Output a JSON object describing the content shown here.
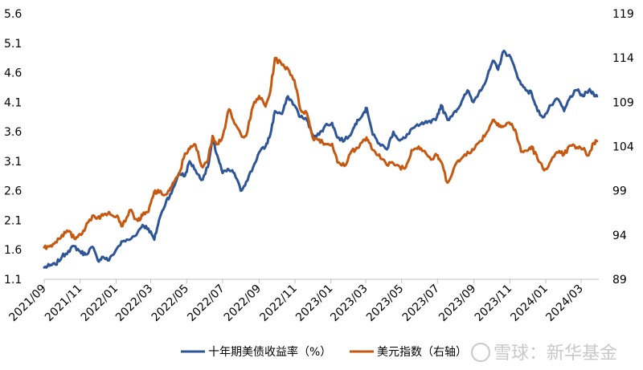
{
  "chart_data": {
    "type": "line",
    "title": "",
    "x_tick_labels": [
      "2021/09",
      "2021/11",
      "2022/01",
      "2022/03",
      "2022/05",
      "2022/07",
      "2022/09",
      "2022/11",
      "2023/01",
      "2023/03",
      "2023/05",
      "2023/07",
      "2023/09",
      "2023/11",
      "2024/01",
      "2024/03"
    ],
    "y_left": {
      "ticks": [
        "1.1",
        "1.6",
        "2.1",
        "2.6",
        "3.1",
        "3.6",
        "4.1",
        "4.6",
        "5.1",
        "5.6"
      ],
      "range": [
        1.1,
        5.6
      ]
    },
    "y_right": {
      "ticks": [
        "89",
        "94",
        "99",
        "104",
        "109",
        "114",
        "119"
      ],
      "range": [
        89,
        119
      ]
    },
    "series": [
      {
        "name": "十年期美债收益率（%）",
        "axis": "left",
        "color": "#2e5597",
        "points": [
          [
            "2021-09-01",
            1.3
          ],
          [
            "2021-09-10",
            1.33
          ],
          [
            "2021-09-20",
            1.35
          ],
          [
            "2021-10-01",
            1.48
          ],
          [
            "2021-10-12",
            1.58
          ],
          [
            "2021-10-22",
            1.66
          ],
          [
            "2021-11-01",
            1.57
          ],
          [
            "2021-11-10",
            1.52
          ],
          [
            "2021-11-22",
            1.65
          ],
          [
            "2021-12-01",
            1.42
          ],
          [
            "2021-12-10",
            1.48
          ],
          [
            "2021-12-20",
            1.42
          ],
          [
            "2022-01-03",
            1.63
          ],
          [
            "2022-01-12",
            1.74
          ],
          [
            "2022-01-24",
            1.77
          ],
          [
            "2022-02-07",
            1.9
          ],
          [
            "2022-02-15",
            2.02
          ],
          [
            "2022-02-25",
            1.96
          ],
          [
            "2022-03-07",
            1.77
          ],
          [
            "2022-03-15",
            2.1
          ],
          [
            "2022-03-28",
            2.45
          ],
          [
            "2022-04-05",
            2.55
          ],
          [
            "2022-04-18",
            2.9
          ],
          [
            "2022-04-28",
            2.85
          ],
          [
            "2022-05-06",
            3.1
          ],
          [
            "2022-05-16",
            2.95
          ],
          [
            "2022-05-26",
            2.78
          ],
          [
            "2022-06-06",
            3.0
          ],
          [
            "2022-06-14",
            3.45
          ],
          [
            "2022-06-22",
            3.2
          ],
          [
            "2022-07-01",
            2.9
          ],
          [
            "2022-07-12",
            2.95
          ],
          [
            "2022-07-21",
            2.9
          ],
          [
            "2022-08-01",
            2.6
          ],
          [
            "2022-08-10",
            2.75
          ],
          [
            "2022-08-22",
            3.0
          ],
          [
            "2022-09-01",
            3.25
          ],
          [
            "2022-09-12",
            3.35
          ],
          [
            "2022-09-20",
            3.55
          ],
          [
            "2022-09-28",
            3.95
          ],
          [
            "2022-10-10",
            3.9
          ],
          [
            "2022-10-20",
            4.2
          ],
          [
            "2022-10-31",
            4.05
          ],
          [
            "2022-11-10",
            3.85
          ],
          [
            "2022-11-21",
            3.8
          ],
          [
            "2022-12-01",
            3.55
          ],
          [
            "2022-12-12",
            3.55
          ],
          [
            "2022-12-22",
            3.7
          ],
          [
            "2023-01-03",
            3.75
          ],
          [
            "2023-01-12",
            3.5
          ],
          [
            "2023-01-24",
            3.45
          ],
          [
            "2023-02-06",
            3.6
          ],
          [
            "2023-02-15",
            3.8
          ],
          [
            "2023-02-28",
            3.95
          ],
          [
            "2023-03-03",
            4.0
          ],
          [
            "2023-03-13",
            3.55
          ],
          [
            "2023-03-24",
            3.4
          ],
          [
            "2023-04-06",
            3.3
          ],
          [
            "2023-04-17",
            3.6
          ],
          [
            "2023-04-28",
            3.45
          ],
          [
            "2023-05-08",
            3.5
          ],
          [
            "2023-05-18",
            3.65
          ],
          [
            "2023-05-30",
            3.7
          ],
          [
            "2023-06-09",
            3.75
          ],
          [
            "2023-06-20",
            3.75
          ],
          [
            "2023-06-30",
            3.85
          ],
          [
            "2023-07-07",
            4.05
          ],
          [
            "2023-07-18",
            3.8
          ],
          [
            "2023-07-31",
            3.95
          ],
          [
            "2023-08-09",
            4.05
          ],
          [
            "2023-08-21",
            4.3
          ],
          [
            "2023-08-31",
            4.1
          ],
          [
            "2023-09-11",
            4.3
          ],
          [
            "2023-09-21",
            4.45
          ],
          [
            "2023-10-03",
            4.8
          ],
          [
            "2023-10-12",
            4.65
          ],
          [
            "2023-10-20",
            4.95
          ],
          [
            "2023-10-31",
            4.9
          ],
          [
            "2023-11-10",
            4.65
          ],
          [
            "2023-11-20",
            4.4
          ],
          [
            "2023-11-30",
            4.3
          ],
          [
            "2023-12-08",
            4.25
          ],
          [
            "2023-12-18",
            3.95
          ],
          [
            "2023-12-29",
            3.85
          ],
          [
            "2024-01-10",
            4.05
          ],
          [
            "2024-01-22",
            4.15
          ],
          [
            "2024-02-01",
            3.95
          ],
          [
            "2024-02-12",
            4.2
          ],
          [
            "2024-02-23",
            4.3
          ],
          [
            "2024-03-04",
            4.2
          ],
          [
            "2024-03-14",
            4.3
          ],
          [
            "2024-03-22",
            4.25
          ],
          [
            "2024-03-28",
            4.2
          ]
        ]
      },
      {
        "name": "美元指数（右轴）",
        "axis": "right",
        "color": "#c65911",
        "points": [
          [
            "2021-09-01",
            92.6
          ],
          [
            "2021-09-10",
            92.7
          ],
          [
            "2021-09-20",
            93.2
          ],
          [
            "2021-10-01",
            94.0
          ],
          [
            "2021-10-12",
            94.4
          ],
          [
            "2021-10-22",
            93.6
          ],
          [
            "2021-11-01",
            94.1
          ],
          [
            "2021-11-10",
            94.8
          ],
          [
            "2021-11-22",
            96.2
          ],
          [
            "2021-12-01",
            96.0
          ],
          [
            "2021-12-10",
            96.2
          ],
          [
            "2021-12-20",
            96.6
          ],
          [
            "2022-01-03",
            96.2
          ],
          [
            "2022-01-12",
            95.0
          ],
          [
            "2022-01-24",
            96.8
          ],
          [
            "2022-02-07",
            95.6
          ],
          [
            "2022-02-15",
            96.2
          ],
          [
            "2022-02-25",
            96.6
          ],
          [
            "2022-03-07",
            98.9
          ],
          [
            "2022-03-15",
            98.8
          ],
          [
            "2022-03-28",
            98.6
          ],
          [
            "2022-04-05",
            99.4
          ],
          [
            "2022-04-18",
            100.8
          ],
          [
            "2022-04-28",
            103.2
          ],
          [
            "2022-05-06",
            103.7
          ],
          [
            "2022-05-16",
            104.2
          ],
          [
            "2022-05-26",
            101.8
          ],
          [
            "2022-06-06",
            102.4
          ],
          [
            "2022-06-14",
            105.2
          ],
          [
            "2022-06-22",
            104.3
          ],
          [
            "2022-07-01",
            105.1
          ],
          [
            "2022-07-12",
            108.2
          ],
          [
            "2022-07-21",
            106.6
          ],
          [
            "2022-08-01",
            105.4
          ],
          [
            "2022-08-10",
            105.2
          ],
          [
            "2022-08-22",
            108.6
          ],
          [
            "2022-09-01",
            109.7
          ],
          [
            "2022-09-12",
            108.5
          ],
          [
            "2022-09-20",
            110.2
          ],
          [
            "2022-09-28",
            114.0
          ],
          [
            "2022-10-10",
            113.2
          ],
          [
            "2022-10-20",
            112.8
          ],
          [
            "2022-10-31",
            111.5
          ],
          [
            "2022-11-10",
            108.2
          ],
          [
            "2022-11-21",
            107.8
          ],
          [
            "2022-12-01",
            105.0
          ],
          [
            "2022-12-12",
            104.8
          ],
          [
            "2022-12-22",
            104.3
          ],
          [
            "2023-01-03",
            104.3
          ],
          [
            "2023-01-12",
            102.2
          ],
          [
            "2023-01-24",
            101.8
          ],
          [
            "2023-02-06",
            103.6
          ],
          [
            "2023-02-15",
            103.8
          ],
          [
            "2023-02-28",
            104.8
          ],
          [
            "2023-03-03",
            104.8
          ],
          [
            "2023-03-13",
            103.6
          ],
          [
            "2023-03-24",
            103.1
          ],
          [
            "2023-04-06",
            101.9
          ],
          [
            "2023-04-17",
            102.1
          ],
          [
            "2023-04-28",
            101.7
          ],
          [
            "2023-05-08",
            101.6
          ],
          [
            "2023-05-18",
            103.6
          ],
          [
            "2023-05-30",
            104.0
          ],
          [
            "2023-06-09",
            103.5
          ],
          [
            "2023-06-20",
            102.5
          ],
          [
            "2023-06-30",
            103.0
          ],
          [
            "2023-07-07",
            102.3
          ],
          [
            "2023-07-18",
            99.9
          ],
          [
            "2023-07-31",
            101.9
          ],
          [
            "2023-08-09",
            102.5
          ],
          [
            "2023-08-21",
            103.4
          ],
          [
            "2023-08-31",
            103.6
          ],
          [
            "2023-09-11",
            104.6
          ],
          [
            "2023-09-21",
            105.4
          ],
          [
            "2023-10-03",
            107.0
          ],
          [
            "2023-10-12",
            106.6
          ],
          [
            "2023-10-20",
            106.2
          ],
          [
            "2023-10-31",
            106.7
          ],
          [
            "2023-11-10",
            105.9
          ],
          [
            "2023-11-20",
            103.4
          ],
          [
            "2023-11-30",
            103.5
          ],
          [
            "2023-12-08",
            104.0
          ],
          [
            "2023-12-18",
            102.6
          ],
          [
            "2023-12-29",
            101.3
          ],
          [
            "2024-01-10",
            102.4
          ],
          [
            "2024-01-22",
            103.3
          ],
          [
            "2024-02-01",
            103.1
          ],
          [
            "2024-02-12",
            104.1
          ],
          [
            "2024-02-23",
            103.9
          ],
          [
            "2024-03-04",
            103.7
          ],
          [
            "2024-03-14",
            103.0
          ],
          [
            "2024-03-22",
            104.4
          ],
          [
            "2024-03-28",
            104.6
          ]
        ]
      }
    ],
    "legend": "bottom"
  },
  "watermark": {
    "text": "雪球：新华基金"
  }
}
